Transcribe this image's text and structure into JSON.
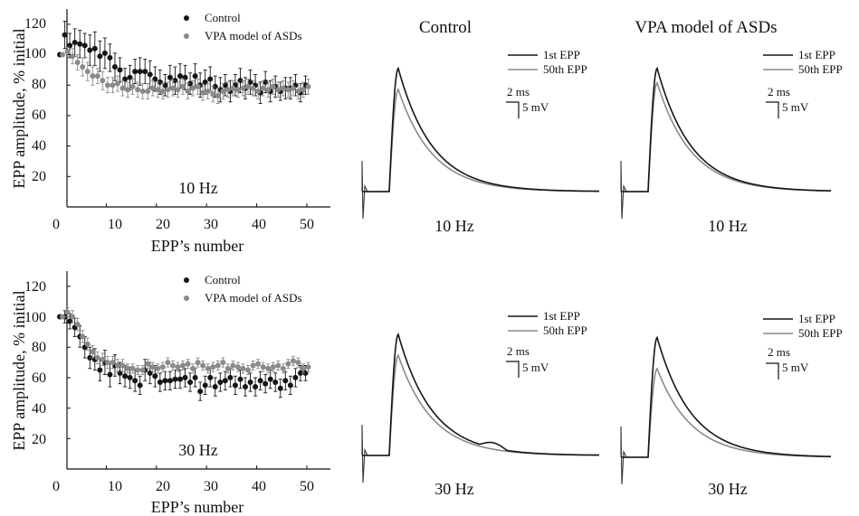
{
  "colors": {
    "control": "#151515",
    "vpa": "#8a8a8a",
    "axis": "#111111"
  },
  "chart_data": [
    {
      "type": "scatter",
      "panel": "top-left",
      "xlabel": "EPP’s number",
      "ylabel": "EPP amplitude, % initial",
      "xlim": [
        0,
        55
      ],
      "ylim": [
        0,
        130
      ],
      "xticks": [
        "0",
        "10",
        "20",
        "30",
        "40",
        "50"
      ],
      "yticks": [
        "20",
        "40",
        "60",
        "80",
        "100",
        "120"
      ],
      "annotation": "10 Hz",
      "legend": {
        "placement": "top-right"
      },
      "series": [
        {
          "name": "Control",
          "x": [
            1,
            2,
            3,
            4,
            5,
            6,
            7,
            8,
            9,
            10,
            11,
            12,
            13,
            14,
            15,
            16,
            17,
            18,
            19,
            20,
            21,
            22,
            23,
            24,
            25,
            26,
            27,
            28,
            29,
            30,
            31,
            32,
            33,
            34,
            35,
            36,
            37,
            38,
            39,
            40,
            41,
            42,
            43,
            44,
            45,
            46,
            47,
            48,
            49,
            50
          ],
          "y": [
            100,
            113,
            106,
            108,
            107,
            106,
            103,
            104,
            99,
            101,
            98,
            92,
            90,
            84,
            85,
            89,
            89,
            89,
            87,
            84,
            82,
            80,
            85,
            83,
            86,
            85,
            81,
            86,
            80,
            82,
            84,
            79,
            77,
            80,
            76,
            80,
            83,
            78,
            82,
            80,
            75,
            82,
            76,
            79,
            76,
            78,
            78,
            80,
            75,
            80
          ],
          "err": [
            0,
            9,
            8,
            9,
            9,
            8,
            10,
            11,
            10,
            10,
            9,
            9,
            8,
            7,
            8,
            8,
            9,
            8,
            9,
            8,
            8,
            7,
            8,
            9,
            8,
            8,
            7,
            8,
            8,
            8,
            8,
            7,
            8,
            7,
            7,
            7,
            8,
            7,
            8,
            7,
            7,
            7,
            7,
            7,
            6,
            7,
            7,
            7,
            6,
            6
          ]
        },
        {
          "name": "VPA model of ASDs",
          "x": [
            1,
            2,
            3,
            4,
            5,
            6,
            7,
            8,
            9,
            10,
            11,
            12,
            13,
            14,
            15,
            16,
            17,
            18,
            19,
            20,
            21,
            22,
            23,
            24,
            25,
            26,
            27,
            28,
            29,
            30,
            31,
            32,
            33,
            34,
            35,
            36,
            37,
            38,
            39,
            40,
            41,
            42,
            43,
            44,
            45,
            46,
            47,
            48,
            49,
            50
          ],
          "y": [
            100,
            102,
            99,
            95,
            92,
            89,
            86,
            86,
            83,
            80,
            80,
            81,
            78,
            77,
            79,
            77,
            76,
            76,
            78,
            77,
            76,
            77,
            78,
            77,
            79,
            76,
            78,
            79,
            75,
            76,
            74,
            73,
            76,
            77,
            78,
            77,
            78,
            79,
            78,
            76,
            78,
            77,
            79,
            77,
            78,
            77,
            78,
            76,
            77,
            79
          ],
          "err": [
            0,
            3,
            5,
            5,
            6,
            6,
            6,
            5,
            6,
            5,
            5,
            5,
            5,
            5,
            5,
            5,
            5,
            5,
            5,
            5,
            5,
            5,
            5,
            5,
            5,
            5,
            5,
            5,
            5,
            5,
            5,
            5,
            5,
            5,
            5,
            5,
            5,
            5,
            5,
            5,
            5,
            5,
            5,
            5,
            5,
            5,
            5,
            5,
            5,
            5
          ]
        }
      ]
    },
    {
      "type": "line",
      "panel": "top-middle",
      "title": "Control",
      "annotation": "10 Hz",
      "legend": {
        "placement": "top-right"
      },
      "scale_bar": {
        "time": "2 ms",
        "amplitude": "5 mV"
      },
      "series": [
        {
          "name": "1st EPP",
          "peak": 94
        },
        {
          "name": "50th EPP",
          "peak": 78
        }
      ]
    },
    {
      "type": "line",
      "panel": "top-right",
      "title": "VPA model of ASDs",
      "annotation": "10 Hz",
      "legend": {
        "placement": "top-right"
      },
      "scale_bar": {
        "time": "2 ms",
        "amplitude": "5 mV"
      },
      "series": [
        {
          "name": "1st EPP",
          "peak": 94
        },
        {
          "name": "50th EPP",
          "peak": 83
        }
      ]
    },
    {
      "type": "scatter",
      "panel": "bottom-left",
      "xlabel": "EPP’s number",
      "ylabel": "EPP amplitude, % initial",
      "xlim": [
        0,
        55
      ],
      "ylim": [
        0,
        130
      ],
      "xticks": [
        "0",
        "10",
        "20",
        "30",
        "40",
        "50"
      ],
      "yticks": [
        "20",
        "40",
        "60",
        "80",
        "100",
        "120"
      ],
      "annotation": "30 Hz",
      "legend": {
        "placement": "top-right"
      },
      "series": [
        {
          "name": "Control",
          "x": [
            1,
            2,
            3,
            4,
            5,
            6,
            7,
            8,
            9,
            10,
            11,
            12,
            13,
            14,
            15,
            16,
            17,
            18,
            19,
            20,
            21,
            22,
            23,
            24,
            25,
            26,
            27,
            28,
            29,
            30,
            31,
            32,
            33,
            34,
            35,
            36,
            37,
            38,
            39,
            40,
            41,
            42,
            43,
            44,
            45,
            46,
            47,
            48,
            49,
            50
          ],
          "y": [
            100,
            100,
            97,
            93,
            87,
            80,
            73,
            72,
            65,
            70,
            62,
            68,
            63,
            61,
            60,
            58,
            55,
            65,
            63,
            61,
            57,
            58,
            58,
            59,
            59,
            60,
            57,
            60,
            51,
            55,
            60,
            54,
            57,
            58,
            60,
            55,
            59,
            54,
            57,
            54,
            58,
            56,
            59,
            57,
            53,
            58,
            55,
            60,
            63,
            63
          ],
          "err": [
            0,
            4,
            5,
            6,
            7,
            7,
            7,
            7,
            7,
            8,
            8,
            7,
            7,
            7,
            7,
            7,
            6,
            7,
            7,
            7,
            6,
            6,
            6,
            6,
            6,
            6,
            6,
            6,
            6,
            6,
            6,
            6,
            6,
            6,
            6,
            6,
            6,
            6,
            6,
            6,
            6,
            6,
            6,
            6,
            6,
            6,
            6,
            6,
            5,
            5
          ]
        },
        {
          "name": "VPA model of ASDs",
          "x": [
            1,
            2,
            3,
            4,
            5,
            6,
            7,
            8,
            9,
            10,
            11,
            12,
            13,
            14,
            15,
            16,
            17,
            18,
            19,
            20,
            21,
            22,
            23,
            24,
            25,
            26,
            27,
            28,
            29,
            30,
            31,
            32,
            33,
            34,
            35,
            36,
            37,
            38,
            39,
            40,
            41,
            42,
            43,
            44,
            45,
            46,
            47,
            48,
            49,
            50
          ],
          "y": [
            100,
            103,
            100,
            95,
            87,
            82,
            77,
            73,
            72,
            70,
            70,
            68,
            68,
            66,
            66,
            65,
            65,
            69,
            67,
            66,
            67,
            70,
            68,
            67,
            68,
            69,
            66,
            70,
            68,
            66,
            67,
            68,
            70,
            66,
            68,
            67,
            66,
            65,
            68,
            69,
            67,
            66,
            67,
            68,
            66,
            69,
            71,
            70,
            66,
            67
          ],
          "err": [
            0,
            3,
            4,
            4,
            4,
            4,
            4,
            4,
            4,
            4,
            4,
            4,
            4,
            3,
            3,
            3,
            3,
            3,
            3,
            3,
            3,
            3,
            3,
            3,
            3,
            3,
            3,
            3,
            3,
            3,
            3,
            3,
            3,
            3,
            3,
            3,
            3,
            3,
            3,
            3,
            3,
            3,
            3,
            3,
            3,
            3,
            3,
            3,
            3,
            3
          ]
        }
      ]
    },
    {
      "type": "line",
      "panel": "bottom-middle",
      "annotation": "30 Hz",
      "legend": {
        "placement": "top-right"
      },
      "scale_bar": {
        "time": "2 ms",
        "amplitude": "5 mV"
      },
      "series": [
        {
          "name": "1st EPP",
          "peak": 93
        },
        {
          "name": "50th EPP",
          "peak": 77
        }
      ]
    },
    {
      "type": "line",
      "panel": "bottom-right",
      "annotation": "30 Hz",
      "legend": {
        "placement": "top-right"
      },
      "scale_bar": {
        "time": "2 ms",
        "amplitude": "5 mV"
      },
      "series": [
        {
          "name": "1st EPP",
          "peak": 92
        },
        {
          "name": "50th EPP",
          "peak": 68
        }
      ]
    }
  ]
}
